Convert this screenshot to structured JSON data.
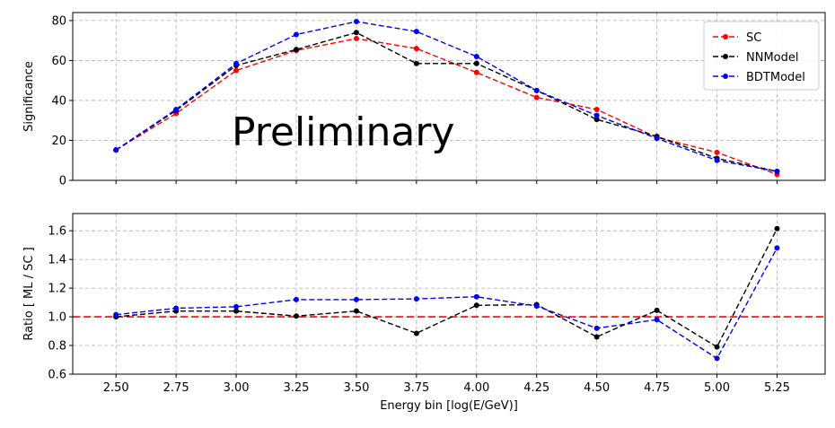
{
  "chart_data": [
    {
      "type": "line",
      "panel": "top",
      "x": [
        2.5,
        2.75,
        3.0,
        3.25,
        3.5,
        3.75,
        4.0,
        4.25,
        4.5,
        4.75,
        5.0,
        5.25
      ],
      "xticks": [
        "2.50",
        "2.75",
        "3.00",
        "3.25",
        "3.50",
        "3.75",
        "4.00",
        "4.25",
        "4.50",
        "4.75",
        "5.00",
        "5.25"
      ],
      "xlim": [
        2.32,
        5.45
      ],
      "ylabel": "Significance",
      "ylim": [
        0,
        84
      ],
      "yticks": [
        "0",
        "20",
        "40",
        "60",
        "80"
      ],
      "grid": true,
      "legend": "top-right",
      "annotation": "Preliminary",
      "series": [
        {
          "name": "SC",
          "color": "#ff0000",
          "values": [
            15.2,
            33.5,
            55.0,
            65.0,
            71.0,
            66.0,
            54.0,
            41.5,
            35.5,
            21.5,
            14.0,
            3.0
          ]
        },
        {
          "name": "NNModel",
          "color": "#000000",
          "values": [
            15.2,
            35.0,
            57.5,
            65.5,
            74.0,
            58.5,
            58.5,
            45.0,
            30.5,
            22.0,
            11.0,
            4.5
          ]
        },
        {
          "name": "BDTModel",
          "color": "#0000ff",
          "values": [
            15.2,
            35.5,
            58.5,
            73.0,
            79.5,
            74.5,
            62.0,
            45.0,
            32.5,
            21.0,
            10.0,
            4.5
          ]
        }
      ]
    },
    {
      "type": "line",
      "panel": "bottom",
      "x": [
        2.5,
        2.75,
        3.0,
        3.25,
        3.5,
        3.75,
        4.0,
        4.25,
        4.5,
        4.75,
        5.0,
        5.25
      ],
      "xticks": [
        "2.50",
        "2.75",
        "3.00",
        "3.25",
        "3.50",
        "3.75",
        "4.00",
        "4.25",
        "4.50",
        "4.75",
        "5.00",
        "5.25"
      ],
      "xlim": [
        2.32,
        5.45
      ],
      "xlabel": "Energy bin [log(E/GeV)]",
      "ylabel": "Ratio [ ML / SC ]",
      "ylim": [
        0.6,
        1.72
      ],
      "yticks": [
        "0.6",
        "0.8",
        "1.0",
        "1.2",
        "1.4",
        "1.6"
      ],
      "reference_line": {
        "y": 1.0,
        "color": "#ff0000"
      },
      "grid": true,
      "series": [
        {
          "color": "#000000",
          "values": [
            1.0,
            1.04,
            1.04,
            1.005,
            1.04,
            0.885,
            1.08,
            1.085,
            0.86,
            1.045,
            0.79,
            1.615
          ]
        },
        {
          "color": "#0000ff",
          "values": [
            1.015,
            1.06,
            1.07,
            1.12,
            1.12,
            1.125,
            1.14,
            1.075,
            0.92,
            0.98,
            0.71,
            1.48
          ]
        }
      ]
    }
  ]
}
